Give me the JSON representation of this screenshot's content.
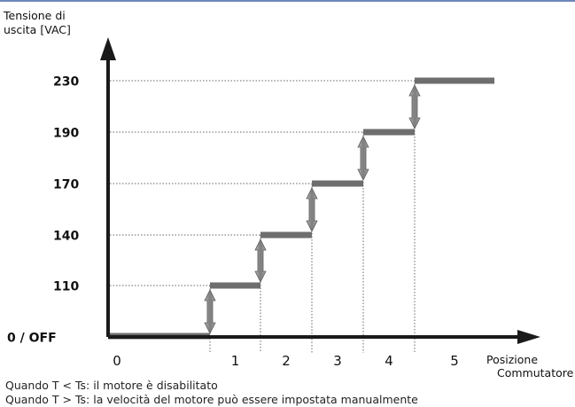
{
  "colors": {
    "axis": "#1a1a1a",
    "step": "#6e6e6e",
    "arrow_fill": "#8a8a8a",
    "arrow_stroke": "#5a5a5a",
    "guide": "#666666",
    "text": "#111111",
    "top_rule": "#6f86bd"
  },
  "chart_data": {
    "type": "line",
    "ylabel": "Tensione di uscita [VAC]",
    "ylabel_lines": [
      "Tensione di",
      "uscita [VAC]"
    ],
    "xlabel": "Posizione Commutatore",
    "xlabel_lines": [
      "Posizione",
      "Commutatore"
    ],
    "y_ticks": [
      "0  / OFF",
      "110",
      "140",
      "170",
      "190",
      "230"
    ],
    "series": [
      {
        "x": [
          "0",
          "1",
          "2",
          "3",
          "4",
          "5"
        ],
        "y": [
          "0 / OFF",
          110,
          140,
          170,
          190,
          230
        ]
      }
    ],
    "step_arrows": "double-headed arrows mark each voltage increase between positions",
    "grid": false
  },
  "captions": [
    "Quando T < Ts: il motore è disabilitato",
    "Quando T > Ts: la velocità del motore può essere impostata manualmente"
  ]
}
